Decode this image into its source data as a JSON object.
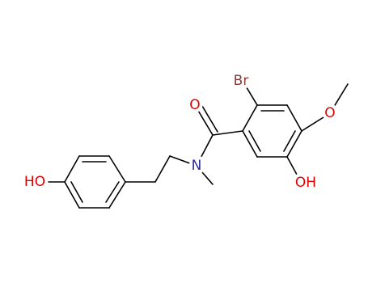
{
  "atoms": [
    {
      "label": "Br"
    },
    {
      "label": "O"
    },
    {
      "label": "O"
    },
    {
      "label": "OH"
    },
    {
      "label": "N"
    },
    {
      "label": "HO"
    }
  ]
}
